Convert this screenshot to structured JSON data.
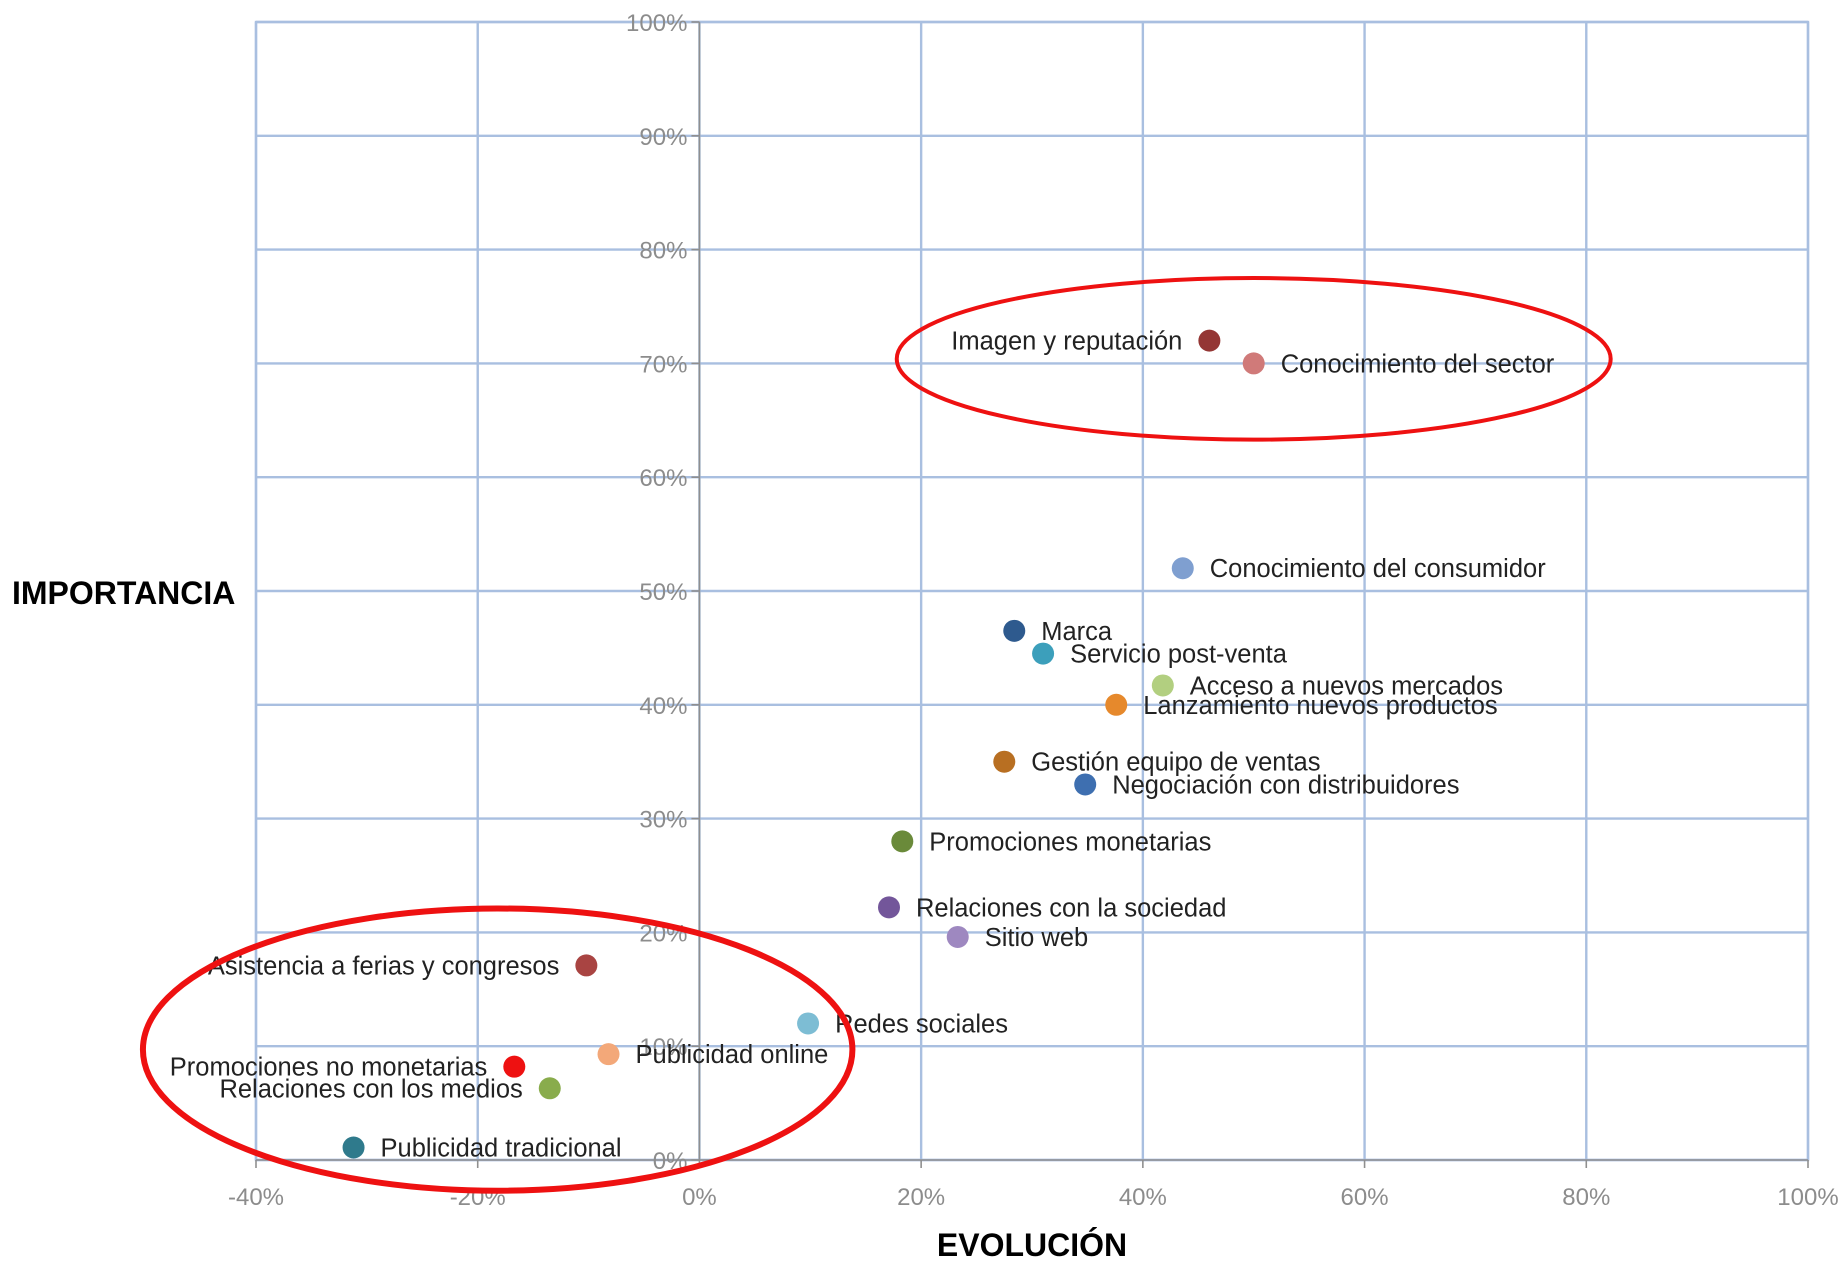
{
  "chart_data": {
    "type": "scatter",
    "xlabel": "EVOLUCIÓN",
    "ylabel": "IMPORTANCIA",
    "xlim": [
      -40,
      100
    ],
    "ylim": [
      0,
      100
    ],
    "x_ticks": [
      -40,
      -20,
      0,
      20,
      40,
      60,
      80,
      100
    ],
    "y_ticks": [
      0,
      10,
      20,
      30,
      40,
      50,
      60,
      70,
      80,
      90,
      100
    ],
    "x_tick_labels": [
      "-40%",
      "-20%",
      "0%",
      "20%",
      "40%",
      "60%",
      "80%",
      "100%"
    ],
    "y_tick_labels": [
      "0%",
      "10%",
      "20%",
      "30%",
      "40%",
      "50%",
      "60%",
      "70%",
      "80%",
      "90%",
      "100%"
    ],
    "grid": true,
    "points": [
      {
        "label": "Imagen y reputación",
        "x": 46,
        "y": 72,
        "color": "#943634"
      },
      {
        "label": "Conocimiento del sector",
        "x": 50,
        "y": 70,
        "color": "#d07a79"
      },
      {
        "label": "Conocimiento del consumidor",
        "x": 43.6,
        "y": 52,
        "color": "#7f9fd0"
      },
      {
        "label": "Marca",
        "x": 28.4,
        "y": 46.5,
        "color": "#2e5a8e"
      },
      {
        "label": "Servicio post-venta",
        "x": 31,
        "y": 44.5,
        "color": "#3c9fbb"
      },
      {
        "label": "Acceso a nuevos mercados",
        "x": 41.8,
        "y": 41.7,
        "color": "#b2cf80"
      },
      {
        "label": "Lanzamiento nuevos productos",
        "x": 37.6,
        "y": 40,
        "color": "#e6892c"
      },
      {
        "label": "Gestión equipo de ventas",
        "x": 27.5,
        "y": 35,
        "color": "#b86f22"
      },
      {
        "label": "Negociación con distribuidores",
        "x": 34.8,
        "y": 33,
        "color": "#3e6fb0"
      },
      {
        "label": "Promociones monetarias",
        "x": 18.3,
        "y": 28,
        "color": "#6a8a3a"
      },
      {
        "label": "Relaciones con la sociedad",
        "x": 17.1,
        "y": 22.2,
        "color": "#73569a"
      },
      {
        "label": "Sitio web",
        "x": 23.3,
        "y": 19.6,
        "color": "#9e88c0"
      },
      {
        "label": "Asistencia a ferias y congresos",
        "x": -10.2,
        "y": 17.1,
        "color": "#a94442"
      },
      {
        "label": "Redes sociales",
        "x": 9.8,
        "y": 12,
        "color": "#7dbdd4"
      },
      {
        "label": "Publicidad online",
        "x": -8.2,
        "y": 9.3,
        "color": "#f3a879"
      },
      {
        "label": "Promociones no monetarias",
        "x": -16.7,
        "y": 8.2,
        "color": "#ee1111"
      },
      {
        "label": "Relaciones con los medios",
        "x": -13.5,
        "y": 6.3,
        "color": "#89ac4c"
      },
      {
        "label": "Publicidad tradicional",
        "x": -31.2,
        "y": 1.1,
        "color": "#2f7a8c"
      }
    ],
    "annotations": [
      {
        "shape": "ellipse",
        "cx": 50,
        "cy": 70.4,
        "rx": 32.2,
        "ry": 7.1,
        "color": "#ee1111"
      },
      {
        "shape": "ellipse",
        "cx": -18.2,
        "cy": 9.7,
        "rx": 32.0,
        "ry": 12.4,
        "color": "#ee1111"
      }
    ]
  }
}
